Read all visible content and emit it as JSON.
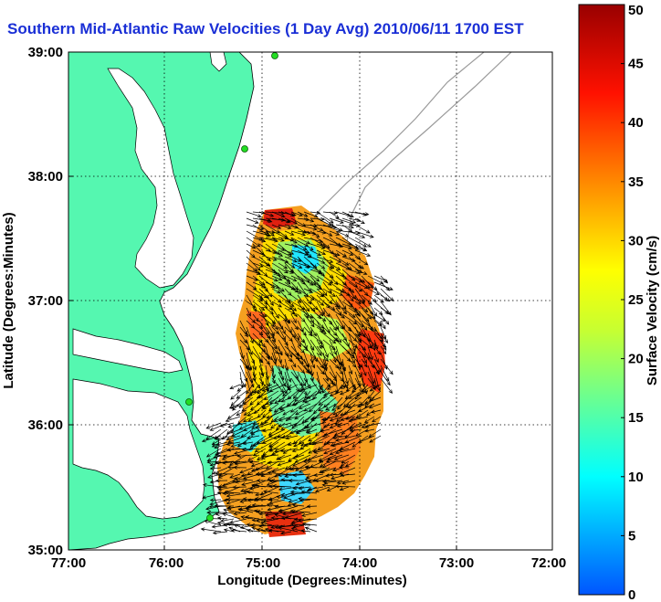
{
  "title": "Southern Mid-Atlantic Raw Velocities (1 Day Avg) 2010/06/11 1700 EST",
  "axes": {
    "xlabel": "Longitude (Degrees:Minutes)",
    "ylabel": "Latitude (Degrees:Minutes)",
    "x_ticks": [
      "77:00",
      "76:00",
      "75:00",
      "74:00",
      "73:00",
      "72:00"
    ],
    "y_ticks": [
      "39:00",
      "38:00",
      "37:00",
      "36:00",
      "35:00"
    ]
  },
  "colorbar": {
    "label": "Surface Velocity (cm/s)",
    "ticks": [
      "0",
      "5",
      "10",
      "15",
      "20",
      "25",
      "30",
      "35",
      "40",
      "45",
      "50"
    ],
    "min": 0,
    "max": 50
  },
  "colors": {
    "land": "#55f7b0",
    "title": "#1a2fd6",
    "station": "#22dd22"
  }
}
